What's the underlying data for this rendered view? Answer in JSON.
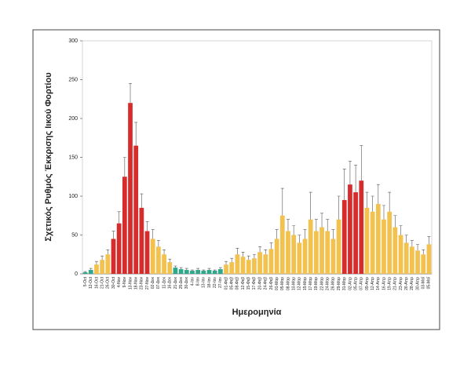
{
  "chart_data": {
    "type": "bar",
    "y_label": "Σχετικός Ρυθμός Έκκρισης Ιικού Φορτίου",
    "x_label": "Ημερομηνία",
    "categories": [
      "5-Oct",
      "12-Oct",
      "16-Oct",
      "21-Oct",
      "26-Oct",
      "30-Oct",
      "4-Nov",
      "9-Nov",
      "13-Nov",
      "18-Nov",
      "23-Nov",
      "27-Nov",
      "02-Δεκ",
      "07-Δεκ",
      "11-Δεκ",
      "16-Δεκ",
      "21-Δεκ",
      "25-Δεκ",
      "30-Δεκ",
      "4-Ιαν",
      "8-Ιαν",
      "13-Ιαν",
      "18-Ιαν",
      "22-Ιαν",
      "27-Ιαν",
      "01-Φεβ",
      "05-Φεβ",
      "08-Φεβ",
      "12-Φεβ",
      "15-Φεβ",
      "17-Φεβ",
      "20-Φεβ",
      "24-Φεβ",
      "26-Φεβ",
      "01-Μαρ",
      "05-Μαρ",
      "08-Μαρ",
      "10-Μαρ",
      "12-Μαρ",
      "15-Μαρ",
      "17-Μαρ",
      "19-Μαρ",
      "22-Μαρ",
      "24-Μαρ",
      "26-Μαρ",
      "29-Μαρ",
      "31-Μαρ",
      "02-Απρ",
      "05-Απρ",
      "07-Απρ",
      "09-Απρ",
      "12-Απρ",
      "14-Απρ",
      "16-Απρ",
      "19-Απρ",
      "21-Απρ",
      "23-Απρ",
      "26-Απρ",
      "28-Απρ",
      "30-Απρ",
      "03-Μαΐ",
      "05-Μαΐ"
    ],
    "values": [
      2,
      5,
      12,
      18,
      25,
      45,
      65,
      125,
      220,
      165,
      85,
      55,
      45,
      35,
      25,
      15,
      8,
      6,
      5,
      4,
      5,
      4,
      5,
      4,
      6,
      12,
      15,
      25,
      22,
      18,
      20,
      28,
      25,
      32,
      45,
      75,
      55,
      50,
      40,
      45,
      70,
      55,
      60,
      55,
      45,
      70,
      95,
      115,
      105,
      120,
      85,
      80,
      90,
      70,
      80,
      60,
      50,
      40,
      35,
      30,
      25,
      38
    ],
    "errors": [
      1,
      2,
      4,
      5,
      6,
      10,
      15,
      25,
      25,
      30,
      18,
      12,
      12,
      8,
      6,
      4,
      2,
      2,
      2,
      1,
      2,
      1,
      2,
      1,
      2,
      4,
      5,
      8,
      6,
      5,
      5,
      7,
      6,
      8,
      12,
      35,
      15,
      12,
      10,
      12,
      35,
      15,
      18,
      15,
      12,
      30,
      40,
      30,
      35,
      45,
      20,
      20,
      25,
      18,
      25,
      15,
      12,
      10,
      8,
      8,
      6,
      10
    ],
    "colors": [
      "#2fa88a",
      "#2fa88a",
      "#f2c14e",
      "#f2c14e",
      "#f2c14e",
      "#d62c2c",
      "#d62c2c",
      "#d62c2c",
      "#d62c2c",
      "#d62c2c",
      "#d62c2c",
      "#d62c2c",
      "#f2c14e",
      "#f2c14e",
      "#f2c14e",
      "#f2c14e",
      "#2fa88a",
      "#2fa88a",
      "#2fa88a",
      "#2fa88a",
      "#2fa88a",
      "#2fa88a",
      "#2fa88a",
      "#2fa88a",
      "#2fa88a",
      "#f2c14e",
      "#f2c14e",
      "#f2c14e",
      "#f2c14e",
      "#f2c14e",
      "#f2c14e",
      "#f2c14e",
      "#f2c14e",
      "#f2c14e",
      "#f2c14e",
      "#f2c14e",
      "#f2c14e",
      "#f2c14e",
      "#f2c14e",
      "#f2c14e",
      "#f2c14e",
      "#f2c14e",
      "#f2c14e",
      "#f2c14e",
      "#f2c14e",
      "#f2c14e",
      "#d62c2c",
      "#d62c2c",
      "#d62c2c",
      "#d62c2c",
      "#f2c14e",
      "#f2c14e",
      "#f2c14e",
      "#f2c14e",
      "#f2c14e",
      "#f2c14e",
      "#f2c14e",
      "#f2c14e",
      "#f2c14e",
      "#f2c14e",
      "#f2c14e",
      "#f2c14e"
    ],
    "ylim": [
      0,
      300
    ],
    "yticks": [
      0,
      50,
      100,
      150,
      200,
      250,
      300
    ],
    "grid": false
  }
}
